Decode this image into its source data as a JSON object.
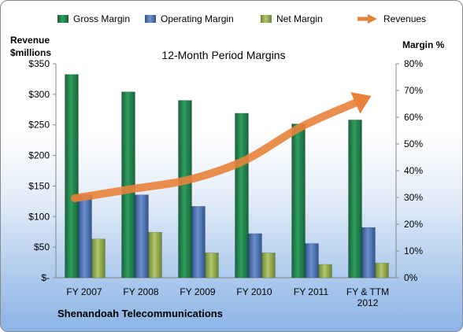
{
  "chart_data": {
    "type": "bar",
    "title": "12-Month Period Margins",
    "company": "Shenandoah Telecommunications",
    "y_left_label": [
      "Revenue",
      "$millions"
    ],
    "y_right_label": "Margin %",
    "y_left_ticks": [
      "$-",
      "$50",
      "$100",
      "$150",
      "$200",
      "$250",
      "$300",
      "$350"
    ],
    "y_right_ticks": [
      "0%",
      "10%",
      "20%",
      "30%",
      "40%",
      "50%",
      "60%",
      "70%",
      "80%"
    ],
    "ylim_left": [
      0,
      350
    ],
    "ylim_right": [
      0,
      80
    ],
    "categories": [
      [
        "FY 2007"
      ],
      [
        "FY 2008"
      ],
      [
        "FY 2009"
      ],
      [
        "FY 2010"
      ],
      [
        "FY 2011"
      ],
      [
        "FY & TTM",
        "2012"
      ]
    ],
    "series": [
      {
        "name": "Gross Margin",
        "axis": "right",
        "kind": "bar",
        "color": "#1f7a45",
        "values": [
          76,
          69.5,
          66.3,
          61.5,
          57.5,
          59
        ]
      },
      {
        "name": "Operating Margin",
        "axis": "right",
        "kind": "bar",
        "color": "#4a6fb0",
        "values": [
          31,
          31,
          26.7,
          16.5,
          12.8,
          18.8
        ]
      },
      {
        "name": "Net Margin",
        "axis": "right",
        "kind": "bar",
        "color": "#8da64a",
        "values": [
          14.5,
          17,
          9.3,
          9.3,
          5,
          5.5
        ]
      },
      {
        "name": "Revenues",
        "axis": "left",
        "kind": "line",
        "color": "#e8823a",
        "values": [
          130,
          145,
          160,
          192,
          247,
          288
        ]
      }
    ],
    "legend_position": "top",
    "grid": false
  }
}
